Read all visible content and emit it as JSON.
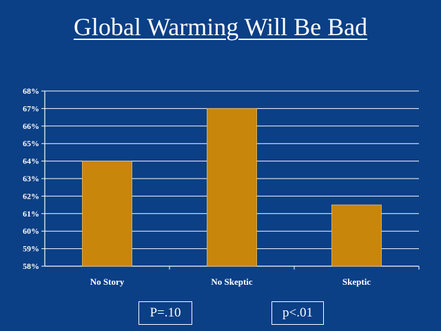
{
  "title": "Global Warming Will Be Bad",
  "chart_data": {
    "type": "bar",
    "title": "Global Warming Will Be Bad",
    "categories": [
      "No Story",
      "No Skeptic",
      "Skeptic"
    ],
    "values": [
      64,
      67,
      61.5
    ],
    "ylim": [
      58,
      68
    ],
    "ytick_step": 1,
    "ytick_labels": [
      "58%",
      "59%",
      "60%",
      "61%",
      "62%",
      "63%",
      "64%",
      "65%",
      "66%",
      "67%",
      "68%"
    ],
    "xlabel": "",
    "ylabel": "",
    "grid": true,
    "bar_color": "#c8860b",
    "grid_color": "#ffffff",
    "background": "#0b3f86"
  },
  "annotations": {
    "p1": "P=.10",
    "p2": "p<.01"
  }
}
